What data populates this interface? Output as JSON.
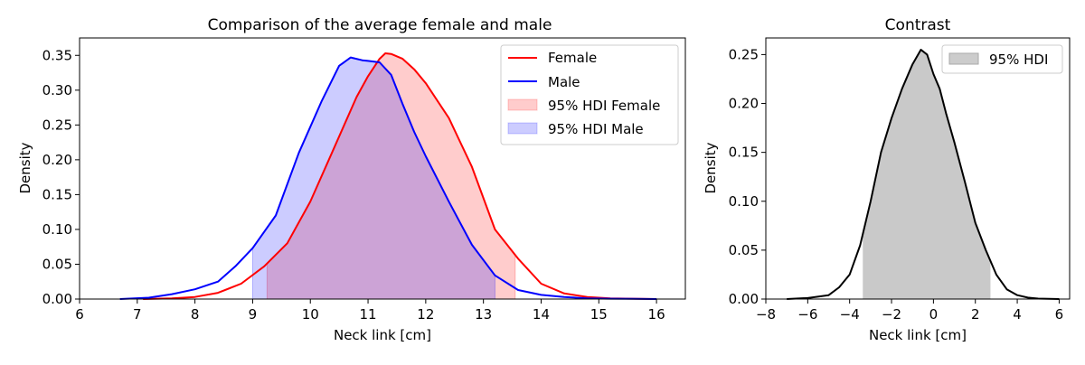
{
  "chart_data": [
    {
      "type": "area",
      "title": "Comparison of the average female and male",
      "xlabel": "Neck link [cm]",
      "ylabel": "Density",
      "xlim": [
        6,
        16.5
      ],
      "ylim": [
        0,
        0.375
      ],
      "xticks": [
        6,
        7,
        8,
        9,
        10,
        11,
        12,
        13,
        14,
        15,
        16
      ],
      "yticks": [
        0.0,
        0.05,
        0.1,
        0.15,
        0.2,
        0.25,
        0.3,
        0.35
      ],
      "legend_position": "top-right",
      "series": [
        {
          "name": "Female",
          "color": "#ff0000",
          "x": [
            7.1,
            7.6,
            8.0,
            8.4,
            8.8,
            9.2,
            9.6,
            10.0,
            10.4,
            10.8,
            11.0,
            11.2,
            11.3,
            11.4,
            11.6,
            11.8,
            12.0,
            12.4,
            12.8,
            13.2,
            13.6,
            14.0,
            14.4,
            14.8,
            15.2,
            15.6,
            16.0
          ],
          "y": [
            0.0,
            0.001,
            0.003,
            0.009,
            0.022,
            0.047,
            0.08,
            0.14,
            0.215,
            0.29,
            0.32,
            0.345,
            0.353,
            0.352,
            0.345,
            0.33,
            0.31,
            0.26,
            0.19,
            0.1,
            0.058,
            0.022,
            0.008,
            0.003,
            0.001,
            0.0005,
            0.0
          ]
        },
        {
          "name": "Male",
          "color": "#0000ff",
          "x": [
            6.7,
            7.2,
            7.6,
            8.0,
            8.4,
            8.7,
            9.0,
            9.4,
            9.8,
            10.2,
            10.5,
            10.7,
            10.9,
            11.0,
            11.2,
            11.4,
            11.6,
            11.8,
            12.0,
            12.4,
            12.8,
            13.2,
            13.6,
            14.0,
            14.4,
            14.8,
            15.2,
            15.6,
            16.0
          ],
          "y": [
            0.0,
            0.002,
            0.007,
            0.014,
            0.025,
            0.047,
            0.073,
            0.12,
            0.21,
            0.285,
            0.335,
            0.347,
            0.343,
            0.342,
            0.34,
            0.322,
            0.28,
            0.24,
            0.205,
            0.14,
            0.078,
            0.034,
            0.013,
            0.006,
            0.003,
            0.001,
            0.0005,
            0.0002,
            0.0
          ]
        }
      ],
      "hdi": [
        {
          "name": "95% HDI Female",
          "series": "Female",
          "low": 9.25,
          "high": 13.55,
          "color": "#ffcccc"
        },
        {
          "name": "95% HDI Male",
          "series": "Male",
          "low": 9.0,
          "high": 13.2,
          "color": "#ccccff"
        }
      ]
    },
    {
      "type": "area",
      "title": "Contrast",
      "xlabel": "Neck link [cm]",
      "ylabel": "Density",
      "xlim": [
        -8,
        6.5
      ],
      "ylim": [
        0,
        0.267
      ],
      "xticks": [
        -8,
        -6,
        -4,
        -2,
        0,
        2,
        4,
        6
      ],
      "xtick_labels": [
        "−8",
        "−6",
        "−4",
        "−2",
        "0",
        "2",
        "4",
        "6"
      ],
      "yticks": [
        0.0,
        0.05,
        0.1,
        0.15,
        0.2,
        0.25
      ],
      "legend_position": "top-right",
      "series": [
        {
          "name": "",
          "color": "#000000",
          "x": [
            -7.0,
            -6.0,
            -5.0,
            -4.5,
            -4.0,
            -3.5,
            -3.0,
            -2.5,
            -2.0,
            -1.5,
            -1.0,
            -0.6,
            -0.3,
            0.0,
            0.3,
            0.6,
            1.0,
            1.5,
            2.0,
            2.5,
            3.0,
            3.5,
            4.0,
            4.5,
            5.0,
            5.5,
            6.0
          ],
          "y": [
            0.0,
            0.001,
            0.004,
            0.012,
            0.025,
            0.055,
            0.1,
            0.15,
            0.185,
            0.215,
            0.24,
            0.255,
            0.25,
            0.23,
            0.215,
            0.19,
            0.16,
            0.12,
            0.078,
            0.05,
            0.025,
            0.01,
            0.004,
            0.0015,
            0.0005,
            0.0002,
            0.0
          ]
        }
      ],
      "hdi": [
        {
          "name": "95% HDI",
          "series": 0,
          "low": -3.35,
          "high": 2.7,
          "color": "#cccccc"
        }
      ]
    }
  ]
}
